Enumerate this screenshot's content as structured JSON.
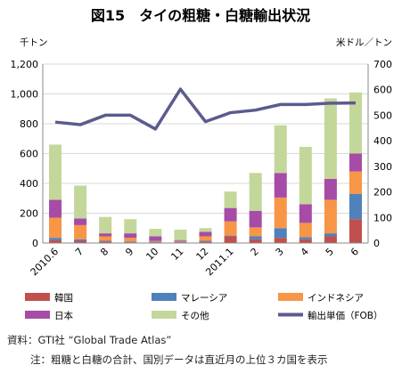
{
  "chart_data": {
    "type": "bar",
    "title": "図15　タイの粗糖・白糖輸出状況",
    "ylabel_left": "千トン",
    "ylabel_right": "米ドル／トン",
    "ylim_left": [
      0,
      1200
    ],
    "ylim_right": [
      0,
      700
    ],
    "yticks_left": [
      "0",
      "200",
      "400",
      "600",
      "800",
      "1,000",
      "1,200"
    ],
    "yticks_right": [
      "0",
      "100",
      "200",
      "300",
      "400",
      "500",
      "600",
      "700"
    ],
    "categories": [
      "2010.6",
      "7",
      "8",
      "9",
      "10",
      "11",
      "12",
      "2011.1",
      "2",
      "3",
      "4",
      "5",
      "6"
    ],
    "series": [
      {
        "name": "韓国",
        "color": "#c0504d",
        "values": [
          20,
          15,
          10,
          5,
          5,
          5,
          10,
          45,
          25,
          35,
          25,
          45,
          160
        ]
      },
      {
        "name": "マレーシア",
        "color": "#4f81bd",
        "values": [
          15,
          10,
          5,
          5,
          5,
          5,
          5,
          5,
          20,
          65,
          15,
          20,
          170
        ]
      },
      {
        "name": "インドネシア",
        "color": "#f79646",
        "values": [
          135,
          95,
          30,
          25,
          5,
          5,
          30,
          95,
          60,
          205,
          95,
          225,
          150
        ]
      },
      {
        "name": "日本",
        "color": "#a64ca6",
        "values": [
          120,
          45,
          20,
          30,
          30,
          5,
          30,
          90,
          110,
          165,
          125,
          140,
          120
        ]
      },
      {
        "name": "その他",
        "color": "#c4d79b",
        "values": [
          370,
          220,
          110,
          95,
          50,
          70,
          25,
          110,
          255,
          320,
          385,
          540,
          410
        ]
      }
    ],
    "line": {
      "name": "輸出単価（FOB）",
      "color": "#5b5b8f",
      "values": [
        473,
        463,
        500,
        500,
        446,
        602,
        475,
        510,
        520,
        542,
        542,
        547,
        548
      ]
    },
    "legend_position": "bottom"
  },
  "footer": {
    "source": "資料：GTI社 “Global Trade Atlas”",
    "note": "注：粗糖と白糖の合計、国別データは直近月の上位３カ国を表示"
  }
}
